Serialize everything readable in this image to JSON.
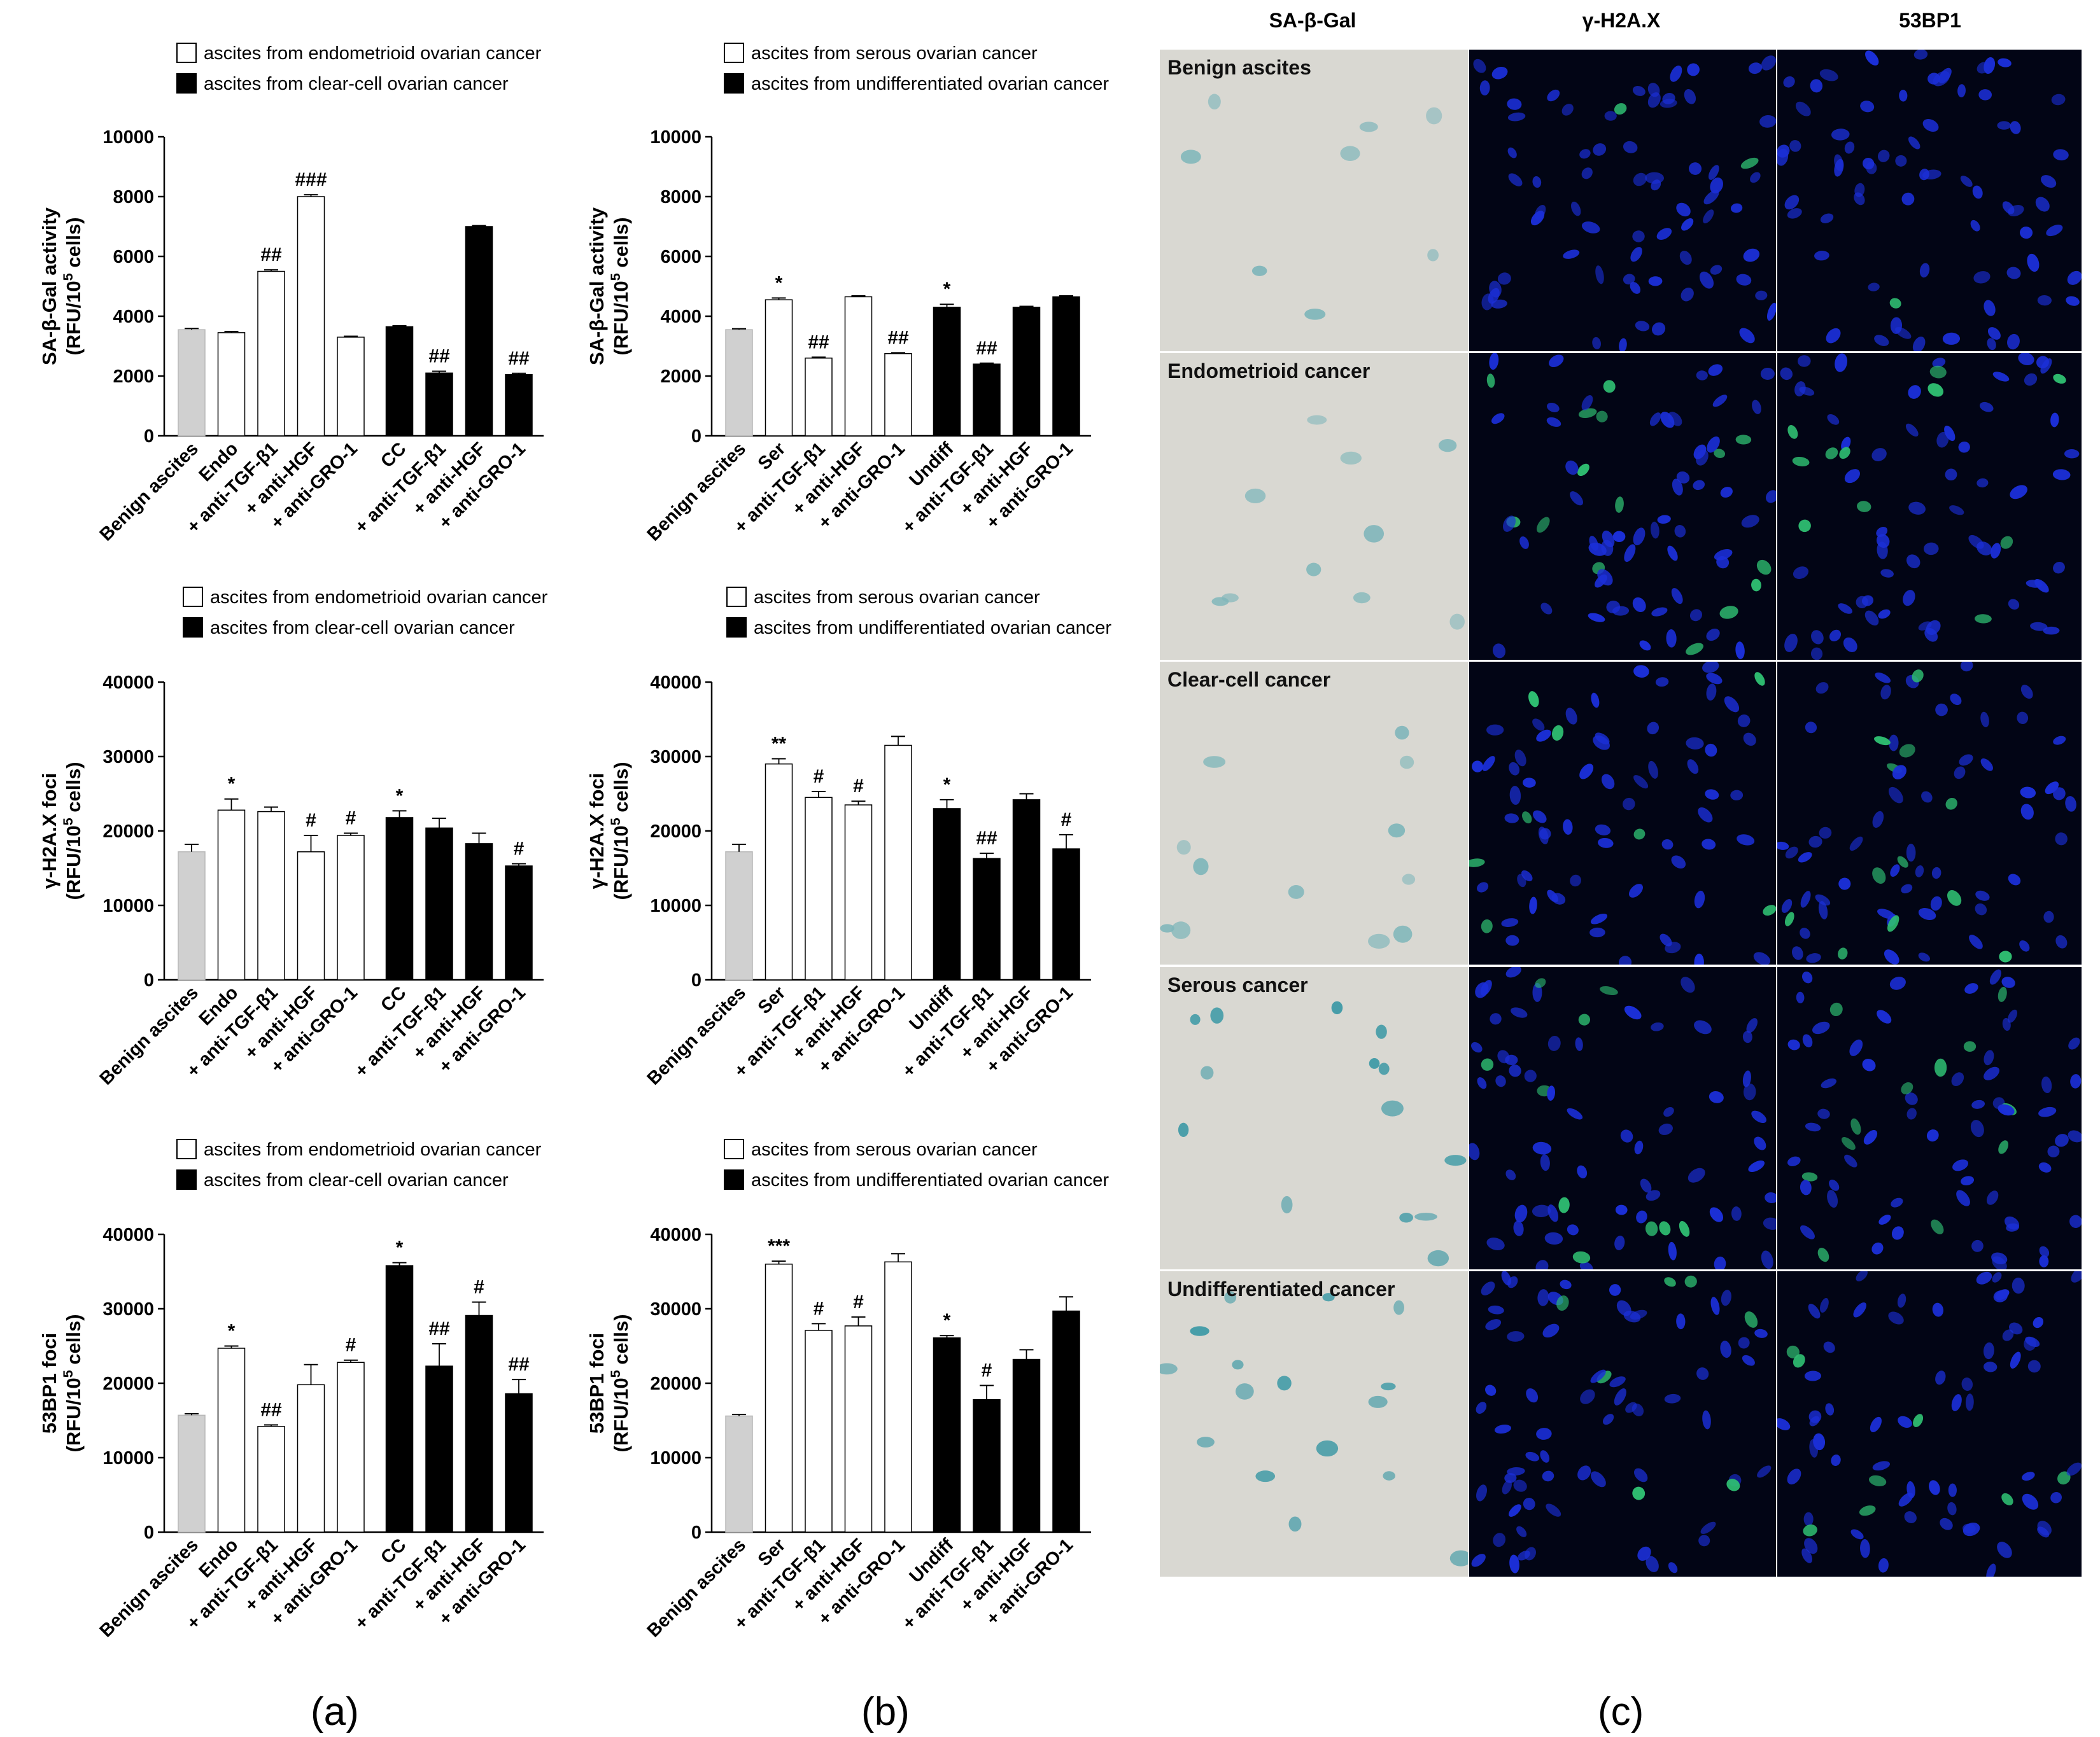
{
  "panel_labels": [
    "(a)",
    "(b)",
    "(c)"
  ],
  "legends": {
    "a": [
      "ascites from endometrioid ovarian cancer",
      "ascites from clear-cell ovarian cancer"
    ],
    "b": [
      "ascites from serous ovarian cancer",
      "ascites from undifferentiated ovarian cancer"
    ]
  },
  "colors": {
    "benign": "#d0d0d0",
    "open": "#ffffff",
    "filled": "#000000"
  },
  "microscopy": {
    "columns": [
      "SA-β-Gal",
      "γ-H2A.X",
      "53BP1"
    ],
    "rows": [
      "Benign ascites",
      "Endometrioid cancer",
      "Clear-cell cancer",
      "Serous cancer",
      "Undifferentiated cancer"
    ]
  },
  "chart_data": [
    {
      "id": "a1",
      "type": "bar",
      "ylabel": [
        "SA-β-Gal activity",
        "(RFU/10^5 cells)"
      ],
      "ylim": [
        0,
        10000
      ],
      "yticks": [
        0,
        2000,
        4000,
        6000,
        8000,
        10000
      ],
      "categories": [
        "Benign ascites",
        "Endo",
        "+ anti-TGF-β1",
        "+ anti-HGF",
        "+ anti-GRO-1",
        "CC",
        "+ anti-TGF-β1",
        "+ anti-HGF",
        "+ anti-GRO-1"
      ],
      "fills": [
        "benign",
        "open",
        "open",
        "open",
        "open",
        "filled",
        "filled",
        "filled",
        "filled"
      ],
      "values": [
        3550,
        3450,
        5500,
        8000,
        3300,
        3650,
        2100,
        7000,
        2050
      ],
      "errors": [
        40,
        40,
        50,
        60,
        30,
        30,
        60,
        30,
        40
      ],
      "sig": [
        "",
        "",
        "##",
        "###",
        "",
        "",
        "##",
        "",
        "##"
      ]
    },
    {
      "id": "a2",
      "type": "bar",
      "ylabel": [
        "γ-H2A.X foci",
        "(RFU/10^5 cells)"
      ],
      "ylim": [
        0,
        40000
      ],
      "yticks": [
        0,
        10000,
        20000,
        30000,
        40000
      ],
      "categories": [
        "Benign ascites",
        "Endo",
        "+ anti-TGF-β1",
        "+ anti-HGF",
        "+ anti-GRO-1",
        "CC",
        "+ anti-TGF-β1",
        "+ anti-HGF",
        "+ anti-GRO-1"
      ],
      "fills": [
        "benign",
        "open",
        "open",
        "open",
        "open",
        "filled",
        "filled",
        "filled",
        "filled"
      ],
      "values": [
        17200,
        22800,
        22600,
        17200,
        19400,
        21800,
        20400,
        18300,
        15300
      ],
      "errors": [
        1000,
        1500,
        600,
        2200,
        300,
        900,
        1300,
        1400,
        300
      ],
      "sig": [
        "",
        "*",
        "",
        "#",
        "#",
        "*",
        "",
        "",
        "#"
      ]
    },
    {
      "id": "a3",
      "type": "bar",
      "ylabel": [
        "53BP1 foci",
        "(RFU/10^5 cells)"
      ],
      "ylim": [
        0,
        40000
      ],
      "yticks": [
        0,
        10000,
        20000,
        30000,
        40000
      ],
      "categories": [
        "Benign ascites",
        "Endo",
        "+ anti-TGF-β1",
        "+ anti-HGF",
        "+ anti-GRO-1",
        "CC",
        "+ anti-TGF-β1",
        "+ anti-HGF",
        "+ anti-GRO-1"
      ],
      "fills": [
        "benign",
        "open",
        "open",
        "open",
        "open",
        "filled",
        "filled",
        "filled",
        "filled"
      ],
      "values": [
        15700,
        24700,
        14200,
        19800,
        22800,
        35800,
        22300,
        29100,
        18600
      ],
      "errors": [
        200,
        300,
        200,
        2700,
        300,
        400,
        3000,
        1800,
        1900
      ],
      "sig": [
        "",
        "*",
        "##",
        "",
        "#",
        "*",
        "##",
        "#",
        "##"
      ]
    },
    {
      "id": "b1",
      "type": "bar",
      "ylabel": [
        "SA-β-Gal activity",
        "(RFU/10^5 cells)"
      ],
      "ylim": [
        0,
        10000
      ],
      "yticks": [
        0,
        2000,
        4000,
        6000,
        8000,
        10000
      ],
      "categories": [
        "Benign ascites",
        "Ser",
        "+ anti-TGF-β1",
        "+ anti-HGF",
        "+ anti-GRO-1",
        "Undiff",
        "+ anti-TGF-β1",
        "+ anti-HGF",
        "+ anti-GRO-1"
      ],
      "fills": [
        "benign",
        "open",
        "open",
        "open",
        "open",
        "filled",
        "filled",
        "filled",
        "filled"
      ],
      "values": [
        3550,
        4550,
        2600,
        4650,
        2750,
        4300,
        2400,
        4300,
        4650
      ],
      "errors": [
        30,
        60,
        30,
        30,
        30,
        100,
        30,
        30,
        30
      ],
      "sig": [
        "",
        "*",
        "##",
        "",
        "##",
        "*",
        "##",
        "",
        ""
      ]
    },
    {
      "id": "b2",
      "type": "bar",
      "ylabel": [
        "γ-H2A.X foci",
        "(RFU/10^5 cells)"
      ],
      "ylim": [
        0,
        40000
      ],
      "yticks": [
        0,
        10000,
        20000,
        30000,
        40000
      ],
      "categories": [
        "Benign ascites",
        "Ser",
        "+ anti-TGF-β1",
        "+ anti-HGF",
        "+ anti-GRO-1",
        "Undiff",
        "+ anti-TGF-β1",
        "+ anti-HGF",
        "+ anti-GRO-1"
      ],
      "fills": [
        "benign",
        "open",
        "open",
        "open",
        "open",
        "filled",
        "filled",
        "filled",
        "filled"
      ],
      "values": [
        17200,
        29000,
        24500,
        23500,
        31500,
        23000,
        16300,
        24200,
        17600
      ],
      "errors": [
        1000,
        700,
        800,
        500,
        1200,
        1200,
        700,
        800,
        1900
      ],
      "sig": [
        "",
        "**",
        "#",
        "#",
        "",
        "*",
        "##",
        "",
        "#"
      ]
    },
    {
      "id": "b3",
      "type": "bar",
      "ylabel": [
        "53BP1 foci",
        "(RFU/10^5 cells)"
      ],
      "ylim": [
        0,
        40000
      ],
      "yticks": [
        0,
        10000,
        20000,
        30000,
        40000
      ],
      "categories": [
        "Benign ascites",
        "Ser",
        "+ anti-TGF-β1",
        "+ anti-HGF",
        "+ anti-GRO-1",
        "Undiff",
        "+ anti-TGF-β1",
        "+ anti-HGF",
        "+ anti-GRO-1"
      ],
      "fills": [
        "benign",
        "open",
        "open",
        "open",
        "open",
        "filled",
        "filled",
        "filled",
        "filled"
      ],
      "values": [
        15600,
        36000,
        27100,
        27700,
        36300,
        26100,
        17800,
        23200,
        29700
      ],
      "errors": [
        200,
        400,
        900,
        1200,
        1100,
        300,
        1900,
        1300,
        1900
      ],
      "sig": [
        "",
        "***",
        "#",
        "#",
        "",
        "*",
        "#",
        "",
        ""
      ]
    }
  ]
}
